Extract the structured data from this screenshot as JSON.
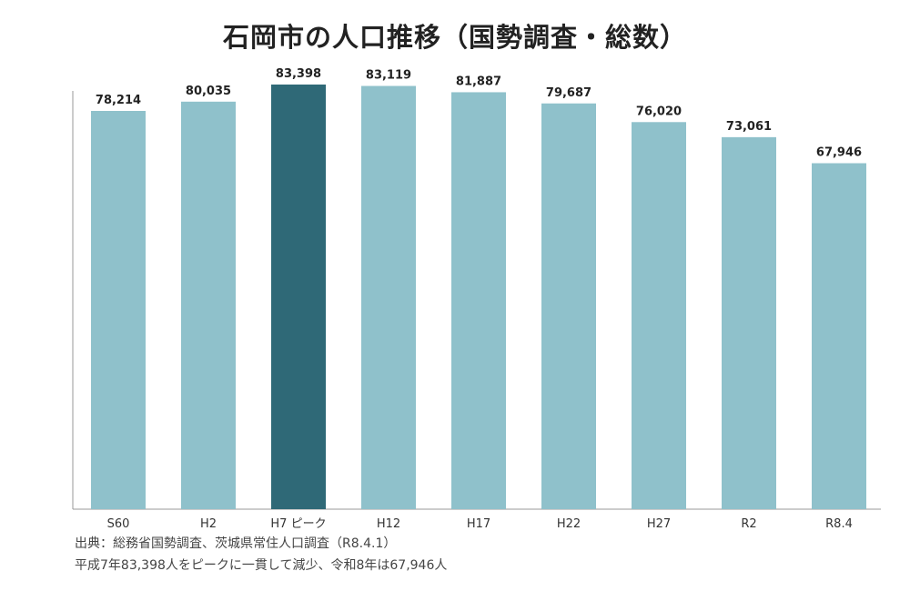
{
  "chart_data": {
    "type": "bar",
    "title": "石岡市の人口推移（国勢調査・総数）",
    "categories": [
      "S60",
      "H2",
      "H7 ピーク",
      "H12",
      "H17",
      "H22",
      "H27",
      "R2",
      "R8.4"
    ],
    "values": [
      78214,
      80035,
      83398,
      83119,
      81887,
      79687,
      76020,
      73061,
      67946
    ],
    "value_labels": [
      "78,214",
      "80,035",
      "83,398",
      "83,119",
      "81,887",
      "79,687",
      "76,020",
      "73,061",
      "67,946"
    ],
    "highlight_category": "H7 ピーク",
    "ylim": [
      0,
      85000
    ],
    "xlabel": "",
    "ylabel": "",
    "grid": false,
    "legend": "none"
  },
  "colors": {
    "bar": "#8fc1cb",
    "bar_highlight": "#2f6977",
    "axis": "#999999",
    "label": "#222222"
  },
  "notes": {
    "source": "出典：総務省国勢調査、茨城県常住人口調査（R8.4.1）",
    "summary": "平成7年83,398人をピークに一貫して減少、令和8年は67,946人"
  }
}
